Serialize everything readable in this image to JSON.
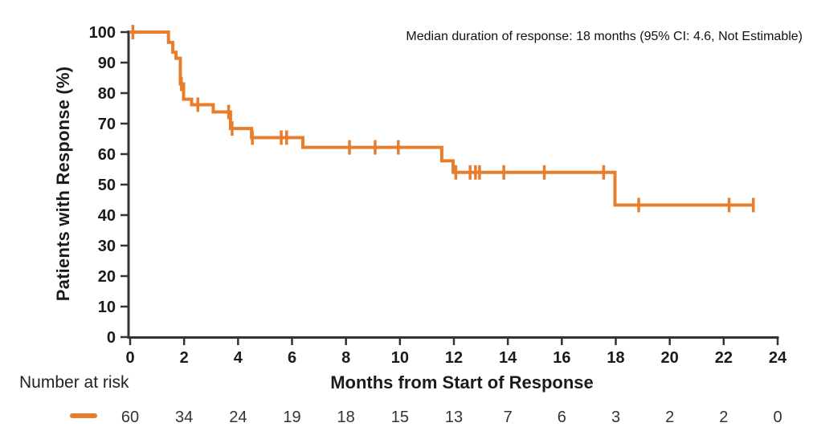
{
  "colors": {
    "curve": "#E87E2C",
    "axis": "#333333",
    "tick_text": "#1b1b1b",
    "count_text": "#333333"
  },
  "chart_data": {
    "type": "line",
    "subtype": "kaplan-meier-step-curve",
    "title": "",
    "xlabel": "Months from Start of Response",
    "ylabel": "Patients with Response (%)",
    "annotation": "Median duration of response: 18 months (95% CI: 4.6, Not Estimable)",
    "xlim": [
      0,
      24
    ],
    "ylim": [
      0,
      100
    ],
    "x_ticks": [
      0,
      2,
      4,
      6,
      8,
      10,
      12,
      14,
      16,
      18,
      20,
      22,
      24
    ],
    "y_ticks": [
      0,
      10,
      20,
      30,
      40,
      50,
      60,
      70,
      80,
      90,
      100
    ],
    "grid": false,
    "legend_position": "bottom-left-marker-only",
    "series": [
      {
        "name": "Patients with response",
        "color": "#E87E2C",
        "steps": [
          [
            0,
            100
          ],
          [
            1.42,
            96.6
          ],
          [
            1.58,
            93.4
          ],
          [
            1.7,
            91.4
          ],
          [
            1.86,
            83.0
          ],
          [
            1.98,
            78.0
          ],
          [
            2.28,
            76.2
          ],
          [
            3.08,
            73.8
          ],
          [
            3.72,
            68.4
          ],
          [
            4.5,
            65.4
          ],
          [
            6.4,
            62.2
          ],
          [
            11.55,
            57.8
          ],
          [
            11.97,
            54.0
          ],
          [
            17.97,
            43.3
          ]
        ],
        "end_time": 23.15,
        "censor_marks": [
          [
            0.1,
            100
          ],
          [
            1.9,
            83.0
          ],
          [
            2.51,
            76.2
          ],
          [
            3.65,
            73.8
          ],
          [
            3.78,
            68.4
          ],
          [
            4.53,
            65.4
          ],
          [
            5.6,
            65.4
          ],
          [
            5.8,
            65.4
          ],
          [
            8.13,
            62.2
          ],
          [
            9.08,
            62.2
          ],
          [
            9.94,
            62.2
          ],
          [
            12.07,
            54.0
          ],
          [
            12.6,
            54.0
          ],
          [
            12.8,
            54.0
          ],
          [
            12.95,
            54.0
          ],
          [
            13.85,
            54.0
          ],
          [
            15.35,
            54.0
          ],
          [
            17.55,
            54.0
          ],
          [
            18.85,
            43.3
          ],
          [
            22.2,
            43.3
          ],
          [
            23.1,
            43.3
          ]
        ]
      }
    ],
    "number_at_risk": {
      "label": "Number at risk",
      "times": [
        0,
        2,
        4,
        6,
        8,
        10,
        12,
        14,
        16,
        18,
        20,
        22,
        24
      ],
      "counts": [
        60,
        34,
        24,
        19,
        18,
        15,
        13,
        7,
        6,
        3,
        2,
        2,
        0
      ]
    }
  }
}
